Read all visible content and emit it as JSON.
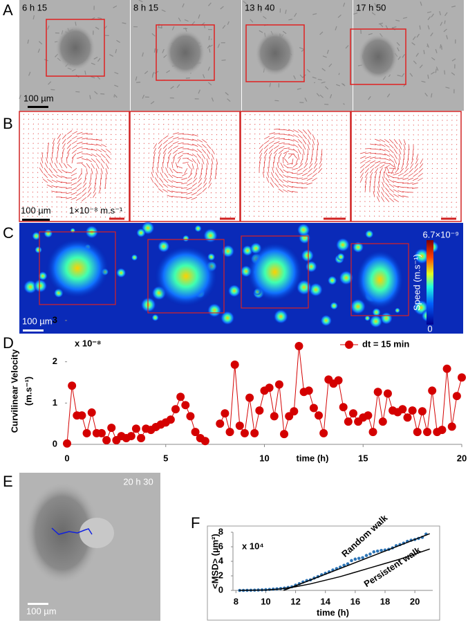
{
  "panels": {
    "letters": [
      "A",
      "B",
      "C",
      "D",
      "E",
      "F"
    ],
    "A": {
      "times": [
        "6 h 15",
        "8 h 15",
        "13 h 40",
        "17 h 50"
      ],
      "scale_bar": "100 µm"
    },
    "B": {
      "scale_bar": "100 µm",
      "vector_scale": "1×10⁻⁸ m.s⁻¹"
    },
    "C": {
      "scale_bar": "100 µm",
      "colorbar_label": "Speed (m.s⁻¹)",
      "colorbar_max": "6.7×10⁻⁹",
      "colorbar_min": "0"
    },
    "E": {
      "time": "20 h 30",
      "scale_bar": "100 µm"
    }
  },
  "chart_data": [
    {
      "type": "line",
      "ylabel": [
        "Curvilinear Velocity",
        "(m.s⁻¹)"
      ],
      "y_multiplier": "x 10⁻⁸",
      "xlabel": "time (h)",
      "xlim": [
        0,
        20
      ],
      "ylim": [
        0,
        3
      ],
      "xticks": [
        0,
        5,
        10,
        15,
        20
      ],
      "yticks": [
        0,
        1,
        2,
        3
      ],
      "x": [
        0,
        0.25,
        0.5,
        0.75,
        1,
        1.25,
        1.5,
        1.75,
        2,
        2.25,
        2.5,
        2.75,
        3,
        3.25,
        3.5,
        3.75,
        4,
        4.25,
        4.5,
        4.75,
        5,
        5.25,
        5.5,
        5.75,
        6,
        6.25,
        6.5,
        6.75,
        7,
        7.25,
        7.5,
        7.75,
        8,
        8.25,
        8.5,
        8.75,
        9,
        9.25,
        9.5,
        9.75,
        10,
        10.25,
        10.5,
        10.75,
        11,
        11.25,
        11.5,
        11.75,
        12,
        12.25,
        12.5,
        12.75,
        13,
        13.25,
        13.5,
        13.75,
        14,
        14.25,
        14.5,
        14.75,
        15,
        15.25,
        15.5,
        15.75,
        16,
        16.25,
        16.5,
        16.75,
        17,
        17.25,
        17.5,
        17.75,
        18,
        18.25,
        18.5,
        18.75,
        19,
        19.25,
        19.5,
        19.75,
        20
      ],
      "series": [
        {
          "name": "dt = 15 min",
          "color": "#d40000",
          "values": [
            0.02,
            1.42,
            0.7,
            0.7,
            0.27,
            0.77,
            0.27,
            0.27,
            0.1,
            0.4,
            0.1,
            0.2,
            0.15,
            0.2,
            0.38,
            0.15,
            0.38,
            0.35,
            0.42,
            0.48,
            0.53,
            0.6,
            0.85,
            1.15,
            0.95,
            0.68,
            0.3,
            0.15,
            0.08,
            null,
            null,
            0.5,
            0.75,
            0.3,
            1.93,
            0.45,
            0.27,
            1.13,
            0.27,
            0.82,
            1.3,
            1.37,
            0.68,
            1.45,
            0.25,
            0.68,
            0.8,
            2.38,
            1.27,
            1.3,
            0.88,
            0.7,
            0.27,
            1.57,
            1.47,
            1.55,
            0.9,
            0.55,
            0.75,
            0.55,
            0.65,
            0.7,
            0.3,
            1.27,
            0.55,
            1.23,
            0.82,
            0.78,
            0.85,
            0.65,
            0.82,
            0.3,
            0.8,
            0.3,
            1.3,
            0.3,
            0.35,
            1.83,
            0.43,
            1.17,
            1.62
          ]
        }
      ],
      "legend": "top-right"
    },
    {
      "type": "scatter",
      "ylabel": "<MSD> (µm²)",
      "y_multiplier": "x 10⁴",
      "xlabel": "time (h)",
      "xlim": [
        7.8,
        21.2
      ],
      "ylim": [
        0,
        8
      ],
      "xticks": [
        8,
        10,
        12,
        14,
        16,
        18,
        20
      ],
      "yticks": [
        0,
        2,
        4,
        6,
        8
      ],
      "series": [
        {
          "style": "dots",
          "color": "#2e75b6",
          "x": [
            8.25,
            8.5,
            8.75,
            9,
            9.25,
            9.5,
            9.75,
            10,
            10.25,
            10.5,
            10.75,
            11,
            11.25,
            11.5,
            11.75,
            12,
            12.25,
            12.5,
            12.75,
            13,
            13.25,
            13.5,
            13.75,
            14,
            14.25,
            14.5,
            14.75,
            15,
            15.25,
            15.5,
            15.75,
            16,
            16.25,
            16.5,
            16.75,
            17,
            17.25,
            17.5,
            17.75,
            18,
            18.25,
            18.5,
            18.75,
            19,
            19.25,
            19.5,
            19.75,
            20,
            20.25,
            20.5,
            20.75
          ],
          "values": [
            0,
            0,
            0.01,
            0.02,
            0.03,
            0.05,
            0.07,
            0.1,
            0.13,
            0.17,
            0.21,
            0.26,
            0.32,
            0.4,
            0.5,
            0.72,
            0.92,
            1.15,
            1.35,
            1.45,
            1.7,
            1.9,
            2.15,
            2.35,
            2.55,
            2.8,
            3,
            3.2,
            3.45,
            3.65,
            4.1,
            4.3,
            4.4,
            4.5,
            4.8,
            5,
            5.3,
            5.4,
            5.5,
            5.55,
            5.65,
            5.85,
            6.15,
            6.3,
            6.5,
            6.75,
            6.9,
            7,
            7.15,
            7.3,
            7.75
          ]
        },
        {
          "style": "line",
          "name": "Random walk",
          "color": "#000000",
          "x": [
            11.2,
            21
          ],
          "values": [
            0,
            7.8
          ]
        },
        {
          "style": "line",
          "name": "Persistent walk",
          "color": "#000000",
          "x": [
            8.2,
            10,
            11,
            12,
            13,
            14,
            15,
            16,
            17,
            18,
            19,
            20,
            21
          ],
          "values": [
            0,
            0.05,
            0.2,
            0.5,
            0.9,
            1.4,
            1.9,
            2.5,
            3.1,
            3.7,
            4.3,
            5,
            5.7
          ]
        }
      ]
    }
  ]
}
